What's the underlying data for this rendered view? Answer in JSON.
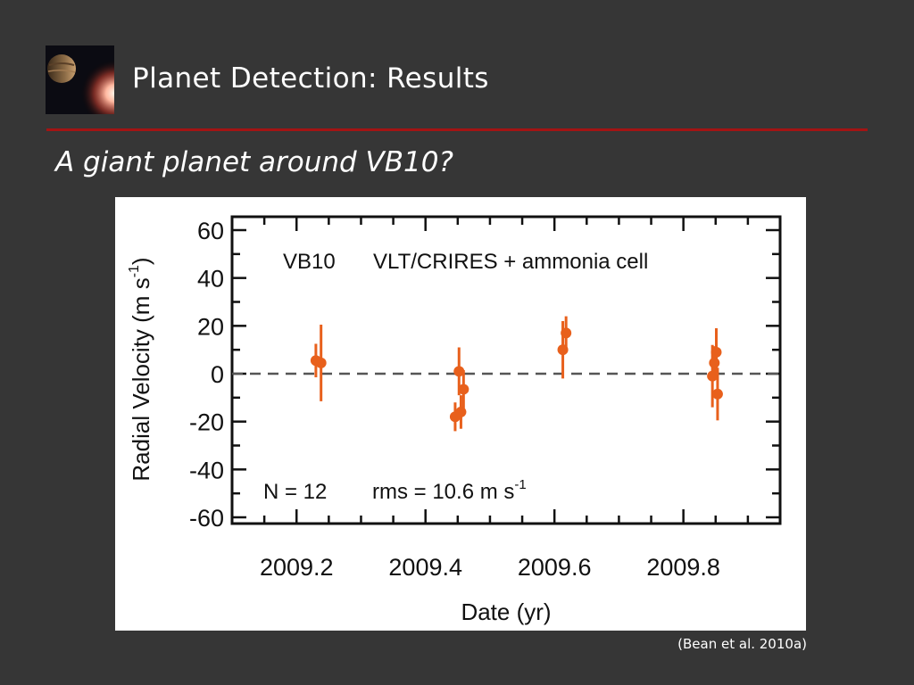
{
  "slide": {
    "title": "Planet Detection: Results",
    "subtitle": "A giant planet around VB10?",
    "citation": "(Bean et al. 2010a)",
    "icon": "planet-star-thumbnail-icon",
    "accent_color": "#a31414",
    "background_color": "#363636"
  },
  "chart_data": {
    "type": "scatter",
    "annotation_target": "VB10",
    "annotation_instrument": "VLT/CRIRES + ammonia cell",
    "stats_n": "N = 12",
    "stats_rms": "rms = 10.6 m s",
    "stats_rms_sup": "-1",
    "xlabel": "Date (yr)",
    "ylabel": "Radial Velocity (m s",
    "ylabel_sup": "-1",
    "ylabel_close": ")",
    "xlim": [
      2009.1,
      2009.95
    ],
    "ylim": [
      -60,
      60
    ],
    "x_ticks": [
      "2009.2",
      "2009.4",
      "2009.6",
      "2009.8"
    ],
    "y_ticks": [
      "60",
      "40",
      "20",
      "0",
      "-20",
      "-40",
      "-60"
    ],
    "zero_line": "dashed",
    "grid": false,
    "point_color": "#e8601c",
    "points": [
      {
        "x": 2009.23,
        "y": 5.5,
        "err": 7
      },
      {
        "x": 2009.238,
        "y": 4.5,
        "err": 16
      },
      {
        "x": 2009.446,
        "y": -18.0,
        "err": 6
      },
      {
        "x": 2009.452,
        "y": 1.0,
        "err": 10
      },
      {
        "x": 2009.455,
        "y": -16.0,
        "err": 7
      },
      {
        "x": 2009.459,
        "y": -6.5,
        "err": 8
      },
      {
        "x": 2009.613,
        "y": 10.0,
        "err": 12
      },
      {
        "x": 2009.618,
        "y": 17.0,
        "err": 7
      },
      {
        "x": 2009.845,
        "y": -1.0,
        "err": 13
      },
      {
        "x": 2009.848,
        "y": 4.5,
        "err": 7
      },
      {
        "x": 2009.851,
        "y": 9.0,
        "err": 10
      },
      {
        "x": 2009.853,
        "y": -8.5,
        "err": 11
      }
    ]
  }
}
